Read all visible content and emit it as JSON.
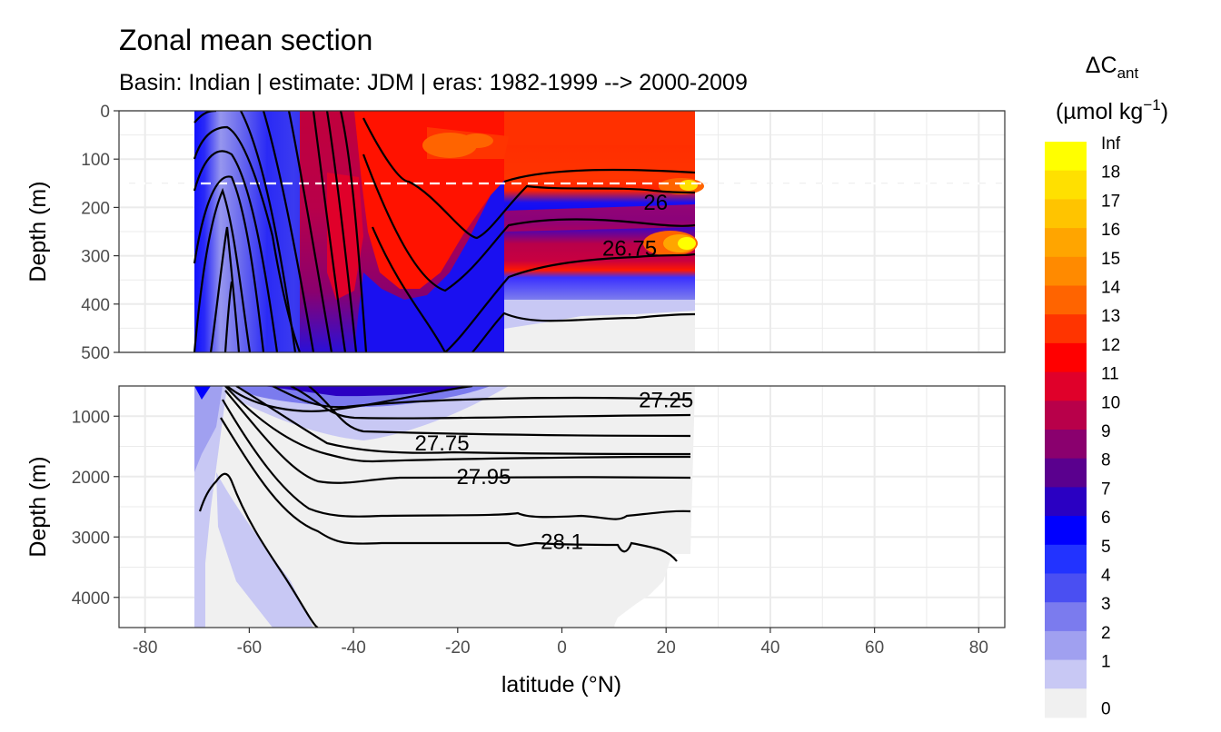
{
  "chart_data": {
    "type": "heatmap",
    "title": "Zonal mean section",
    "subtitle": "Basin: Indian | estimate: JDM  | eras: 1982-1999 --> 2000-2009",
    "xlabel": "latitude (°N)",
    "x_ticks": [
      "-80",
      "-60",
      "-40",
      "-20",
      "0",
      "20",
      "40",
      "60",
      "80"
    ],
    "xlim": [
      -85,
      85
    ],
    "grid": true,
    "legend_position": "right",
    "panels": [
      {
        "ylabel": "Depth (m)",
        "ylim": [
          0,
          500
        ],
        "y_ticks": [
          "0",
          "100",
          "200",
          "300",
          "400",
          "500"
        ],
        "reference_line_depth": 150,
        "contour_labels": [
          {
            "text": "26",
            "lat": 18,
            "depth": 190
          },
          {
            "text": "26.75",
            "lat": 13,
            "depth": 285
          }
        ]
      },
      {
        "ylabel": "Depth (m)",
        "ylim": [
          500,
          4500
        ],
        "y_ticks": [
          "1000",
          "2000",
          "3000",
          "4000"
        ],
        "contour_labels": [
          {
            "text": "27.25",
            "lat": 20,
            "depth": 730
          },
          {
            "text": "27.75",
            "lat": -23,
            "depth": 1450
          },
          {
            "text": "27.95",
            "lat": -15,
            "depth": 2000
          },
          {
            "text": "28.1",
            "lat": 0,
            "depth": 3080
          }
        ]
      }
    ],
    "legend": {
      "title": "ΔC",
      "title_sub": "ant",
      "unit_prefix": "(µmol kg",
      "unit_sup": "−1",
      "unit_suffix": ")",
      "labels": [
        "Inf",
        "18",
        "17",
        "16",
        "15",
        "14",
        "13",
        "12",
        "11",
        "10",
        "9",
        "8",
        "7",
        "6",
        "5",
        "4",
        "3",
        "2",
        "1",
        "0"
      ],
      "colors": [
        "#ffff00",
        "#ffe000",
        "#ffc400",
        "#ffa500",
        "#ff8a00",
        "#ff6400",
        "#ff3400",
        "#ff0000",
        "#e0002a",
        "#b8004a",
        "#8a006e",
        "#5a008e",
        "#2a00c2",
        "#0000ff",
        "#2233ff",
        "#4a4ff2",
        "#7b7bee",
        "#a0a0f0",
        "#c8c8f4",
        "#f0f0f0"
      ]
    }
  }
}
